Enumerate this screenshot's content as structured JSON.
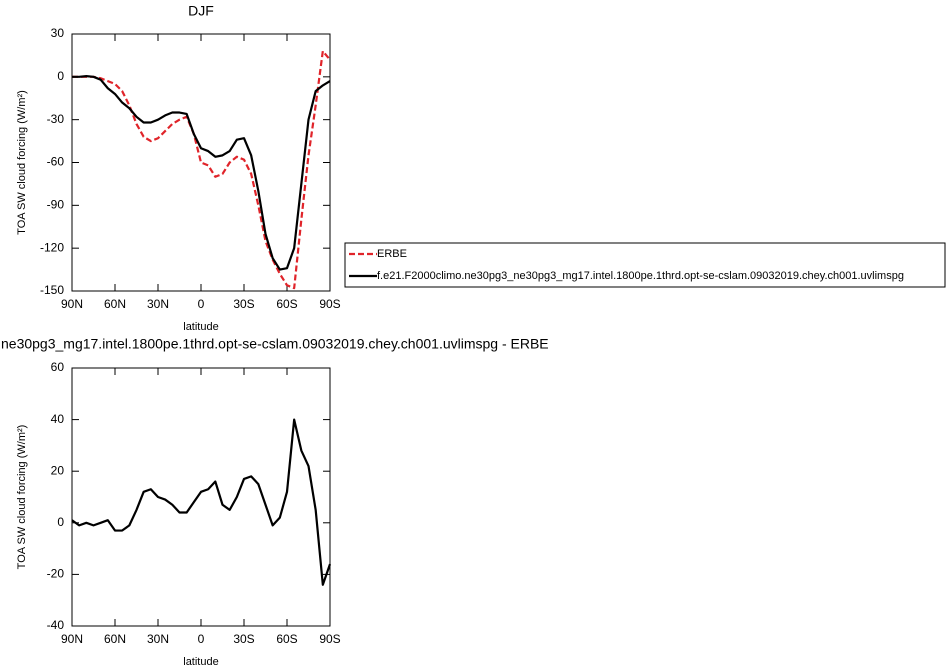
{
  "chart_data": [
    {
      "type": "line",
      "title": "DJF",
      "xlabel": "latitude",
      "ylabel": "TOA SW cloud forcing (W/m²)",
      "x": [
        90,
        85,
        80,
        75,
        70,
        65,
        60,
        55,
        50,
        45,
        40,
        35,
        30,
        25,
        20,
        15,
        10,
        5,
        0,
        -5,
        -10,
        -15,
        -20,
        -25,
        -30,
        -35,
        -40,
        -45,
        -50,
        -55,
        -60,
        -65,
        -70,
        -75,
        -80,
        -85,
        -90
      ],
      "xlim": [
        90,
        -90
      ],
      "xticks": [
        {
          "value": 90,
          "label": "90N"
        },
        {
          "value": 60,
          "label": "60N"
        },
        {
          "value": 30,
          "label": "30N"
        },
        0,
        {
          "value": -30,
          "label": "30S"
        },
        {
          "value": -60,
          "label": "60S"
        },
        {
          "value": -90,
          "label": "90S"
        }
      ],
      "ylim": [
        -150,
        30
      ],
      "yticks": [
        -150,
        -120,
        -90,
        -60,
        -30,
        0,
        30
      ],
      "legend": "right",
      "series": [
        {
          "name": "ERBE",
          "color": "#e0242a",
          "line_style": "dashed",
          "values": [
            0,
            0,
            0,
            0,
            -1,
            -3,
            -5,
            -10,
            -20,
            -33,
            -42,
            -45,
            -43,
            -38,
            -33,
            -30,
            -28,
            -40,
            -60,
            -62,
            -70,
            -68,
            -60,
            -56,
            -58,
            -68,
            -90,
            -115,
            -128,
            -138,
            -146,
            -148,
            -100,
            -55,
            -20,
            18,
            12
          ]
        },
        {
          "name": "f.e21.F2000climo.ne30pg3_ne30pg3_mg17.intel.1800pe.1thrd.opt-se-cslam.09032019.chey.ch001.uvlimspg",
          "color": "#000000",
          "line_style": "solid",
          "values": [
            0,
            0,
            0.5,
            0,
            -2,
            -8,
            -12,
            -18,
            -22,
            -28,
            -32,
            -32,
            -30,
            -27,
            -25,
            -25,
            -26,
            -40,
            -50,
            -52,
            -56,
            -55,
            -52,
            -44,
            -43,
            -55,
            -80,
            -110,
            -127,
            -135,
            -134,
            -120,
            -75,
            -30,
            -10,
            -6,
            -3
          ]
        }
      ]
    },
    {
      "type": "line",
      "title": "ne30pg3_mg17.intel.1800pe.1thrd.opt-se-cslam.09032019.chey.ch001.uvlimspg - ERBE",
      "xlabel": "latitude",
      "ylabel": "TOA SW cloud forcing (W/m²)",
      "x": [
        90,
        85,
        80,
        75,
        70,
        65,
        60,
        55,
        50,
        45,
        40,
        35,
        30,
        25,
        20,
        15,
        10,
        5,
        0,
        -5,
        -10,
        -15,
        -20,
        -25,
        -30,
        -35,
        -40,
        -45,
        -50,
        -55,
        -60,
        -65,
        -70,
        -75,
        -80,
        -85,
        -90
      ],
      "xlim": [
        90,
        -90
      ],
      "xticks": [
        {
          "value": 90,
          "label": "90N"
        },
        {
          "value": 60,
          "label": "60N"
        },
        {
          "value": 30,
          "label": "30N"
        },
        0,
        {
          "value": -30,
          "label": "30S"
        },
        {
          "value": -60,
          "label": "60S"
        },
        {
          "value": -90,
          "label": "90S"
        }
      ],
      "ylim": [
        -40,
        60
      ],
      "yticks": [
        -40,
        -20,
        0,
        20,
        40,
        60
      ],
      "series": [
        {
          "color": "#000000",
          "line_style": "solid",
          "values": [
            1,
            -1,
            0,
            -1,
            0,
            1,
            -3,
            -3,
            -1,
            5,
            12,
            13,
            10,
            9,
            7,
            4,
            4,
            8,
            12,
            13,
            16,
            7,
            5,
            10,
            17,
            18,
            15,
            7,
            -1,
            2,
            12,
            40,
            28,
            22,
            5,
            -24,
            -16
          ]
        }
      ]
    }
  ]
}
